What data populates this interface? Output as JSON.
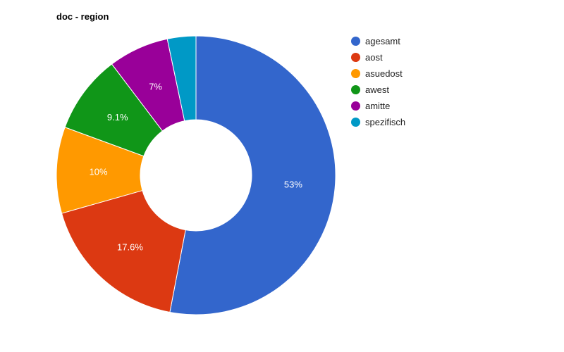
{
  "chart_data": {
    "type": "pie",
    "donut": true,
    "title": "doc - region",
    "legend_position": "right",
    "slices": [
      {
        "label": "agesamt",
        "value": 53.0,
        "display": "53%",
        "color": "#3366cc"
      },
      {
        "label": "aost",
        "value": 17.6,
        "display": "17.6%",
        "color": "#dc3912"
      },
      {
        "label": "asuedost",
        "value": 10.0,
        "display": "10%",
        "color": "#ff9900"
      },
      {
        "label": "awest",
        "value": 9.1,
        "display": "9.1%",
        "color": "#109618"
      },
      {
        "label": "amitte",
        "value": 7.0,
        "display": "7%",
        "color": "#990099"
      },
      {
        "label": "spezifisch",
        "value": 3.3,
        "display": "",
        "color": "#0099c6"
      }
    ]
  }
}
